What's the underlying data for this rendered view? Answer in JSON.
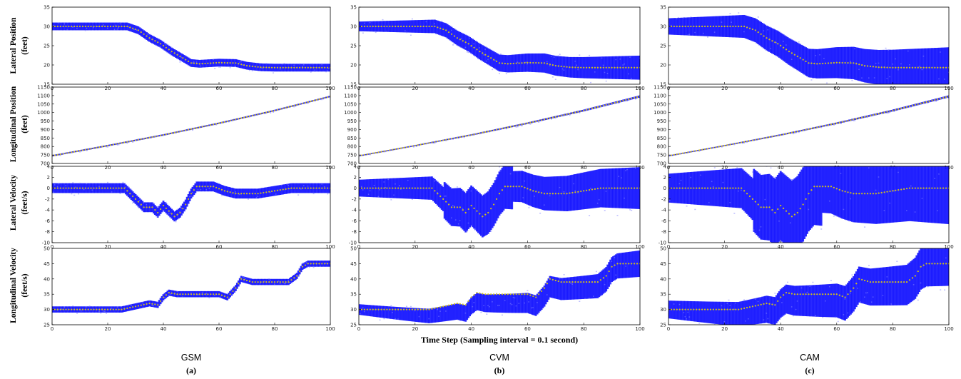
{
  "figure": {
    "xlabel": "Time Step (Sampling interval = 0.1 second)",
    "row_labels": [
      [
        "Lateral Position",
        "(feet)"
      ],
      [
        "Longitudinal Position",
        "(feet)"
      ],
      [
        "Lateral Velocity",
        "(feet/s)"
      ],
      [
        "Longitudinal Velocity",
        "(feet/s)"
      ]
    ],
    "columns": [
      {
        "model": "GSM",
        "sub": "(a)"
      },
      {
        "model": "CVM",
        "sub": "(b)"
      },
      {
        "model": "CAM",
        "sub": "(c)"
      }
    ]
  },
  "colors": {
    "particles": "#1414ff",
    "truth": "#d4c21a",
    "axis": "#000000"
  },
  "chart_data": [
    {
      "type": "scatter",
      "row": "lateral-position",
      "xlim": [
        0,
        100
      ],
      "ylim": [
        15,
        35
      ],
      "yticks": [
        15,
        20,
        25,
        30,
        35
      ],
      "xticks": [
        0,
        20,
        40,
        60,
        80,
        100
      ],
      "truth": {
        "x": [
          0,
          10,
          20,
          27,
          31,
          35,
          39,
          43,
          47,
          50,
          53,
          60,
          66,
          70,
          75,
          80,
          90,
          100
        ],
        "y": [
          30,
          30,
          30,
          30,
          29,
          27,
          25.5,
          23.5,
          21.8,
          20.5,
          20.3,
          20.6,
          20.5,
          19.8,
          19.4,
          19.3,
          19.3,
          19.3
        ]
      },
      "spread": [
        1.0,
        1.3,
        1.6
      ]
    },
    {
      "type": "scatter",
      "row": "longitudinal-position",
      "xlim": [
        0,
        100
      ],
      "ylim": [
        700,
        1150
      ],
      "yticks": [
        700,
        750,
        800,
        850,
        900,
        950,
        1000,
        1050,
        1100,
        1150
      ],
      "xticks": [
        0,
        20,
        40,
        60,
        80,
        100
      ],
      "truth": {
        "x": [
          0,
          20,
          40,
          60,
          80,
          100
        ],
        "y": [
          745,
          805,
          868,
          937,
          1012,
          1095
        ]
      },
      "spread": [
        4,
        4,
        4
      ]
    },
    {
      "type": "scatter",
      "row": "lateral-velocity",
      "xlim": [
        0,
        100
      ],
      "ylim": [
        -10,
        4
      ],
      "yticks": [
        -10,
        -8,
        -6,
        -4,
        -2,
        0,
        2,
        4
      ],
      "xticks": [
        0,
        20,
        40,
        60,
        80,
        100
      ],
      "truth": {
        "x": [
          0,
          26,
          28,
          30,
          33,
          36,
          38,
          40,
          42,
          44,
          46,
          48,
          50,
          52,
          54,
          58,
          62,
          66,
          68,
          74,
          80,
          86,
          90,
          94,
          100
        ],
        "y": [
          0,
          0,
          -1,
          -2,
          -3.5,
          -3.5,
          -4.5,
          -3.2,
          -4.2,
          -5.2,
          -4.5,
          -3,
          -1,
          0.3,
          0.3,
          0.3,
          -0.5,
          -1,
          -1,
          -1,
          -0.5,
          0,
          0,
          0,
          0
        ]
      },
      "spread": [
        0.9,
        1.6,
        2.0
      ]
    },
    {
      "type": "scatter",
      "row": "longitudinal-velocity",
      "xlim": [
        0,
        100
      ],
      "ylim": [
        25,
        50
      ],
      "yticks": [
        25,
        30,
        35,
        40,
        45,
        50
      ],
      "xticks": [
        0,
        20,
        40,
        60,
        80,
        100
      ],
      "truth": {
        "x": [
          0,
          25,
          30,
          35,
          38,
          40,
          42,
          45,
          50,
          55,
          60,
          63,
          66,
          68,
          72,
          78,
          85,
          88,
          90,
          92,
          95,
          100
        ],
        "y": [
          30,
          30,
          31,
          32,
          31.5,
          34,
          35.5,
          35,
          35,
          35,
          35,
          34,
          37,
          40,
          39,
          39,
          39,
          41,
          44,
          45,
          45,
          45
        ]
      },
      "spread": [
        1.0,
        1.8,
        2.2
      ]
    }
  ]
}
